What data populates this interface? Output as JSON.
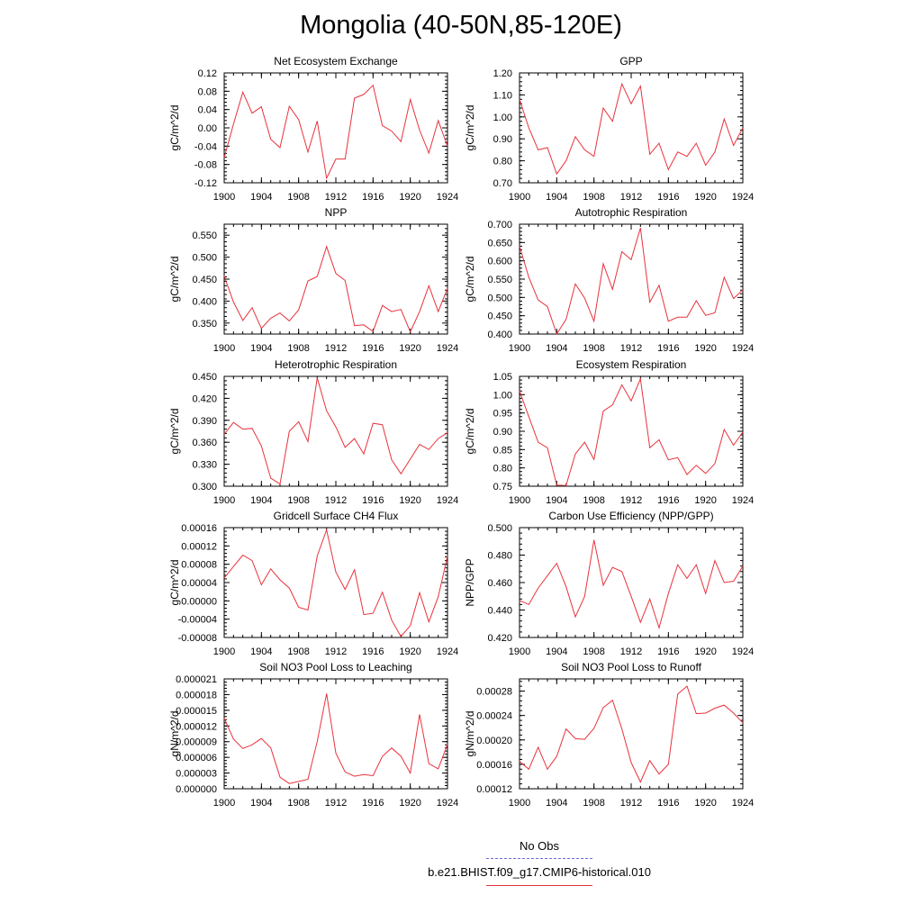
{
  "title": "Mongolia (40-50N,85-120E)",
  "legend": {
    "obs_label": "No Obs",
    "obs_color": "#6a6ad8",
    "model_label": "b.e21.BHIST.f09_g17.CMIP6-historical.010",
    "model_color": "#e8323c"
  },
  "chart_data": [
    {
      "type": "line",
      "title": "Net Ecosystem Exchange",
      "ylabel": "gC/m^2/d",
      "xlim": [
        1900,
        1924
      ],
      "ylim": [
        -0.12,
        0.12
      ],
      "xticks": [
        "1900",
        "1904",
        "1908",
        "1912",
        "1916",
        "1920",
        "1924"
      ],
      "yticks": [
        "-0.12",
        "-0.08",
        "-0.04",
        "0.00",
        "0.04",
        "0.08",
        "0.12"
      ],
      "series": [
        {
          "x": [
            1900,
            1901,
            1902,
            1903,
            1904,
            1905,
            1906,
            1907,
            1908,
            1909,
            1910,
            1911,
            1912,
            1913,
            1914,
            1915,
            1916,
            1917,
            1918,
            1919,
            1920,
            1921,
            1922,
            1923,
            1924
          ],
          "values": [
            -0.065,
            0.008,
            0.078,
            0.032,
            0.046,
            -0.025,
            -0.043,
            0.047,
            0.018,
            -0.053,
            0.015,
            -0.11,
            -0.068,
            -0.068,
            0.065,
            0.073,
            0.093,
            0.005,
            -0.007,
            -0.03,
            0.062,
            -0.005,
            -0.055,
            0.016,
            -0.04
          ]
        }
      ]
    },
    {
      "type": "line",
      "title": "GPP",
      "ylabel": "gC/m^2/d",
      "xlim": [
        1900,
        1924
      ],
      "ylim": [
        0.7,
        1.2
      ],
      "xticks": [
        "1900",
        "1904",
        "1908",
        "1912",
        "1916",
        "1920",
        "1924"
      ],
      "yticks": [
        "0.70",
        "0.80",
        "0.90",
        "1.00",
        "1.10",
        "1.20"
      ],
      "series": [
        {
          "x": [
            1900,
            1901,
            1902,
            1903,
            1904,
            1905,
            1906,
            1907,
            1908,
            1909,
            1910,
            1911,
            1912,
            1913,
            1914,
            1915,
            1916,
            1917,
            1918,
            1919,
            1920,
            1921,
            1922,
            1923,
            1924
          ],
          "values": [
            1.08,
            0.95,
            0.85,
            0.86,
            0.74,
            0.8,
            0.91,
            0.85,
            0.82,
            1.04,
            0.98,
            1.15,
            1.06,
            1.14,
            0.83,
            0.88,
            0.76,
            0.84,
            0.82,
            0.88,
            0.78,
            0.84,
            0.99,
            0.87,
            0.95
          ]
        }
      ]
    },
    {
      "type": "line",
      "title": "NPP",
      "ylabel": "gC/m^2/d",
      "xlim": [
        1900,
        1924
      ],
      "ylim": [
        0.325,
        0.575
      ],
      "xticks": [
        "1900",
        "1904",
        "1908",
        "1912",
        "1916",
        "1920",
        "1924"
      ],
      "yticks": [
        "0.350",
        "0.400",
        "0.450",
        "0.500",
        "0.550"
      ],
      "series": [
        {
          "x": [
            1900,
            1901,
            1902,
            1903,
            1904,
            1905,
            1906,
            1907,
            1908,
            1909,
            1910,
            1911,
            1912,
            1913,
            1914,
            1915,
            1916,
            1917,
            1918,
            1919,
            1920,
            1921,
            1922,
            1923,
            1924
          ],
          "values": [
            0.457,
            0.398,
            0.356,
            0.385,
            0.338,
            0.361,
            0.373,
            0.355,
            0.38,
            0.446,
            0.456,
            0.524,
            0.463,
            0.447,
            0.344,
            0.346,
            0.331,
            0.39,
            0.376,
            0.381,
            0.33,
            0.376,
            0.435,
            0.376,
            0.429
          ]
        }
      ]
    },
    {
      "type": "line",
      "title": "Autotrophic Respiration",
      "ylabel": "gC/m^2/d",
      "xlim": [
        1900,
        1924
      ],
      "ylim": [
        0.4,
        0.7
      ],
      "xticks": [
        "1900",
        "1904",
        "1908",
        "1912",
        "1916",
        "1920",
        "1924"
      ],
      "yticks": [
        "0.400",
        "0.450",
        "0.500",
        "0.550",
        "0.600",
        "0.650",
        "0.700"
      ],
      "series": [
        {
          "x": [
            1900,
            1901,
            1902,
            1903,
            1904,
            1905,
            1906,
            1907,
            1908,
            1909,
            1910,
            1911,
            1912,
            1913,
            1914,
            1915,
            1916,
            1917,
            1918,
            1919,
            1920,
            1921,
            1922,
            1923,
            1924
          ],
          "values": [
            0.64,
            0.555,
            0.493,
            0.475,
            0.4,
            0.44,
            0.537,
            0.498,
            0.435,
            0.592,
            0.522,
            0.625,
            0.603,
            0.69,
            0.487,
            0.533,
            0.435,
            0.446,
            0.446,
            0.491,
            0.451,
            0.458,
            0.555,
            0.497,
            0.521
          ]
        }
      ]
    },
    {
      "type": "line",
      "title": "Heterotrophic Respiration",
      "ylabel": "gC/m^2/d",
      "xlim": [
        1900,
        1924
      ],
      "ylim": [
        0.3,
        0.45
      ],
      "xticks": [
        "1900",
        "1904",
        "1908",
        "1912",
        "1916",
        "1920",
        "1924"
      ],
      "yticks": [
        "0.300",
        "0.330",
        "0.360",
        "0.390",
        "0.420",
        "0.450"
      ],
      "series": [
        {
          "x": [
            1900,
            1901,
            1902,
            1903,
            1904,
            1905,
            1906,
            1907,
            1908,
            1909,
            1910,
            1911,
            1912,
            1913,
            1914,
            1915,
            1916,
            1917,
            1918,
            1919,
            1920,
            1921,
            1922,
            1923,
            1924
          ],
          "values": [
            0.371,
            0.387,
            0.378,
            0.379,
            0.355,
            0.311,
            0.303,
            0.375,
            0.388,
            0.361,
            0.448,
            0.403,
            0.381,
            0.353,
            0.365,
            0.344,
            0.386,
            0.384,
            0.336,
            0.317,
            0.337,
            0.357,
            0.35,
            0.365,
            0.373
          ]
        }
      ]
    },
    {
      "type": "line",
      "title": "Ecosystem Respiration",
      "ylabel": "gC/m^2/d",
      "xlim": [
        1900,
        1924
      ],
      "ylim": [
        0.75,
        1.05
      ],
      "xticks": [
        "1900",
        "1904",
        "1908",
        "1912",
        "1916",
        "1920",
        "1924"
      ],
      "yticks": [
        "0.75",
        "0.80",
        "0.85",
        "0.90",
        "0.95",
        "1.00",
        "1.05"
      ],
      "series": [
        {
          "x": [
            1900,
            1901,
            1902,
            1903,
            1904,
            1905,
            1906,
            1907,
            1908,
            1909,
            1910,
            1911,
            1912,
            1913,
            1914,
            1915,
            1916,
            1917,
            1918,
            1919,
            1920,
            1921,
            1922,
            1923,
            1924
          ],
          "values": [
            1.01,
            0.94,
            0.87,
            0.855,
            0.753,
            0.752,
            0.838,
            0.87,
            0.823,
            0.955,
            0.972,
            1.027,
            0.983,
            1.043,
            0.855,
            0.877,
            0.822,
            0.828,
            0.782,
            0.807,
            0.785,
            0.812,
            0.905,
            0.862,
            0.898
          ]
        }
      ]
    },
    {
      "type": "line",
      "title": "Gridcell Surface CH4 Flux",
      "ylabel": "gC/m^2/d",
      "xlim": [
        1900,
        1924
      ],
      "ylim": [
        -8e-05,
        0.00016
      ],
      "xticks": [
        "1900",
        "1904",
        "1908",
        "1912",
        "1916",
        "1920",
        "1924"
      ],
      "yticks": [
        "-0.00008",
        "-0.00004",
        "0.00000",
        "0.00004",
        "0.00008",
        "0.00012",
        "0.00016"
      ],
      "series": [
        {
          "x": [
            1900,
            1901,
            1902,
            1903,
            1904,
            1905,
            1906,
            1907,
            1908,
            1909,
            1910,
            1911,
            1912,
            1913,
            1914,
            1915,
            1916,
            1917,
            1918,
            1919,
            1920,
            1921,
            1922,
            1923,
            1924
          ],
          "values": [
            5e-05,
            7.5e-05,
            0.0001,
            8.8e-05,
            3.5e-05,
            7e-05,
            4.6e-05,
            2.8e-05,
            -1.4e-05,
            -2e-05,
            9.8e-05,
            0.000155,
            6.3e-05,
            2.5e-05,
            6.8e-05,
            -3e-05,
            -2.7e-05,
            1.9e-05,
            -4.2e-05,
            -7.8e-05,
            -5.4e-05,
            1.8e-05,
            -4.6e-05,
            9e-06,
            9.8e-05
          ]
        }
      ]
    },
    {
      "type": "line",
      "title": "Carbon Use Efficiency (NPP/GPP)",
      "ylabel": "NPP/GPP",
      "xlim": [
        1900,
        1924
      ],
      "ylim": [
        0.42,
        0.5
      ],
      "xticks": [
        "1900",
        "1904",
        "1908",
        "1912",
        "1916",
        "1920",
        "1924"
      ],
      "yticks": [
        "0.420",
        "0.440",
        "0.460",
        "0.480",
        "0.500"
      ],
      "series": [
        {
          "x": [
            1900,
            1901,
            1902,
            1903,
            1904,
            1905,
            1906,
            1907,
            1908,
            1909,
            1910,
            1911,
            1912,
            1913,
            1914,
            1915,
            1916,
            1917,
            1918,
            1919,
            1920,
            1921,
            1922,
            1923,
            1924
          ],
          "values": [
            0.447,
            0.444,
            0.456,
            0.465,
            0.474,
            0.457,
            0.435,
            0.45,
            0.491,
            0.458,
            0.471,
            0.468,
            0.45,
            0.431,
            0.448,
            0.427,
            0.452,
            0.473,
            0.463,
            0.473,
            0.452,
            0.476,
            0.46,
            0.461,
            0.472
          ]
        }
      ]
    },
    {
      "type": "line",
      "title": "Soil NO3 Pool Loss to Leaching",
      "ylabel": "gN/m^2/d",
      "xlim": [
        1900,
        1924
      ],
      "ylim": [
        0.0,
        2.1e-05
      ],
      "xticks": [
        "1900",
        "1904",
        "1908",
        "1912",
        "1916",
        "1920",
        "1924"
      ],
      "yticks": [
        "0.000000",
        "0.000003",
        "0.000006",
        "0.000009",
        "0.000012",
        "0.000015",
        "0.000018",
        "0.000021"
      ],
      "series": [
        {
          "x": [
            1900,
            1901,
            1902,
            1903,
            1904,
            1905,
            1906,
            1907,
            1908,
            1909,
            1910,
            1911,
            1912,
            1913,
            1914,
            1915,
            1916,
            1917,
            1918,
            1919,
            1920,
            1921,
            1922,
            1923,
            1924
          ],
          "values": [
            1.35e-05,
            9.5e-06,
            7.7e-06,
            8.4e-06,
            9.6e-06,
            7.8e-06,
            2.2e-06,
            1e-06,
            1.4e-06,
            1.8e-06,
            9e-06,
            1.82e-05,
            6.8e-06,
            3.2e-06,
            2.4e-06,
            2.7e-06,
            2.5e-06,
            6.2e-06,
            7.8e-06,
            6.2e-06,
            3e-06,
            1.42e-05,
            4.8e-06,
            3.8e-06,
            8.5e-06
          ]
        }
      ]
    },
    {
      "type": "line",
      "title": "Soil NO3 Pool Loss to Runoff",
      "ylabel": "gN/m^2/d",
      "xlim": [
        1900,
        1924
      ],
      "ylim": [
        0.00012,
        0.0003
      ],
      "xticks": [
        "1900",
        "1904",
        "1908",
        "1912",
        "1916",
        "1920",
        "1924"
      ],
      "yticks": [
        "0.00012",
        "0.00016",
        "0.00020",
        "0.00024",
        "0.00028"
      ],
      "series": [
        {
          "x": [
            1900,
            1901,
            1902,
            1903,
            1904,
            1905,
            1906,
            1907,
            1908,
            1909,
            1910,
            1911,
            1912,
            1913,
            1914,
            1915,
            1916,
            1917,
            1918,
            1919,
            1920,
            1921,
            1922,
            1923,
            1924
          ],
          "values": [
            0.000165,
            0.000152,
            0.000188,
            0.000152,
            0.000173,
            0.000218,
            0.000202,
            0.000201,
            0.000219,
            0.000253,
            0.000265,
            0.000218,
            0.000163,
            0.000131,
            0.000166,
            0.000144,
            0.00016,
            0.000275,
            0.000288,
            0.000243,
            0.000244,
            0.000252,
            0.000257,
            0.000244,
            0.000228
          ]
        }
      ]
    }
  ]
}
